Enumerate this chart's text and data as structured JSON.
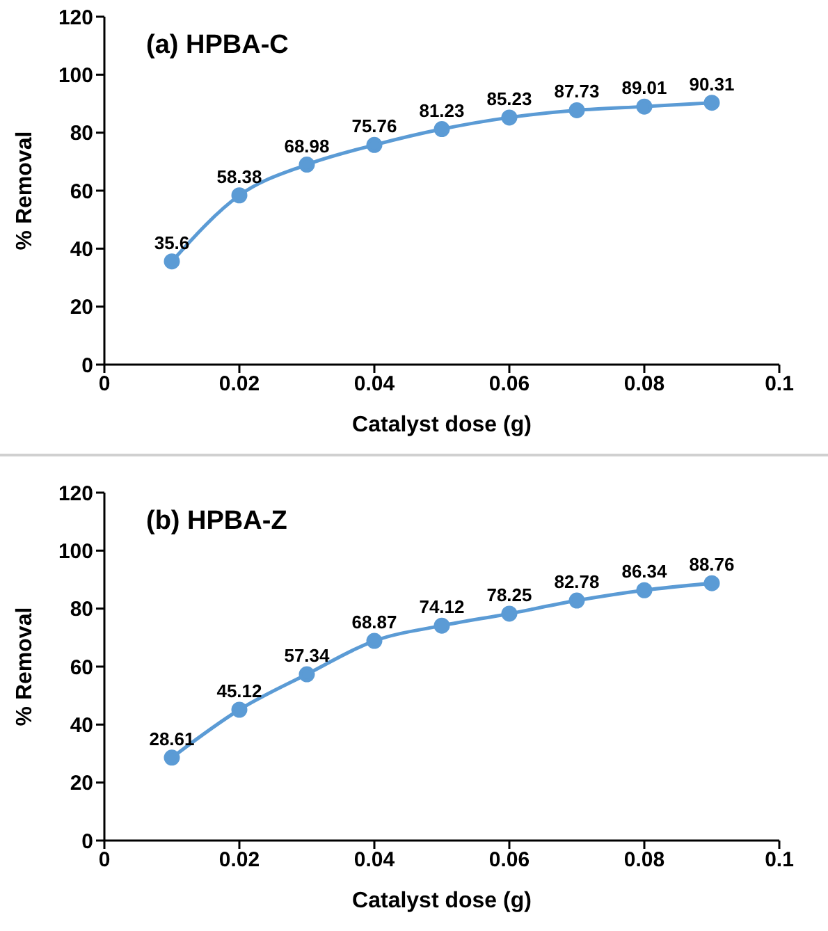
{
  "chart_data": [
    {
      "type": "line",
      "title": "(a) HPBA-C",
      "xlabel": "Catalyst dose (g)",
      "ylabel": "% Removal",
      "x": [
        0.01,
        0.02,
        0.03,
        0.04,
        0.05,
        0.06,
        0.07,
        0.08,
        0.09
      ],
      "series": [
        {
          "color": "#5b9bd5",
          "values": [
            35.6,
            58.38,
            68.98,
            75.76,
            81.23,
            85.23,
            87.73,
            89.01,
            90.31
          ]
        }
      ],
      "xlim": [
        0,
        0.1
      ],
      "xticks": [
        0,
        0.02,
        0.04,
        0.06,
        0.08,
        0.1
      ],
      "ylim": [
        0,
        120
      ],
      "yticks": [
        0,
        20,
        40,
        60,
        80,
        100,
        120
      ],
      "grid": false,
      "legend": false,
      "marker": "circle",
      "line_style": "solid",
      "data_labels": true
    },
    {
      "type": "line",
      "title": "(b) HPBA-Z",
      "xlabel": "Catalyst dose (g)",
      "ylabel": "% Removal",
      "x": [
        0.01,
        0.02,
        0.03,
        0.04,
        0.05,
        0.06,
        0.07,
        0.08,
        0.09
      ],
      "series": [
        {
          "color": "#5b9bd5",
          "values": [
            28.61,
            45.12,
            57.34,
            68.87,
            74.12,
            78.25,
            82.78,
            86.34,
            88.76
          ]
        }
      ],
      "xlim": [
        0,
        0.1
      ],
      "xticks": [
        0,
        0.02,
        0.04,
        0.06,
        0.08,
        0.1
      ],
      "ylim": [
        0,
        120
      ],
      "yticks": [
        0,
        20,
        40,
        60,
        80,
        100,
        120
      ],
      "grid": false,
      "legend": false,
      "marker": "circle",
      "line_style": "solid",
      "data_labels": true
    }
  ]
}
